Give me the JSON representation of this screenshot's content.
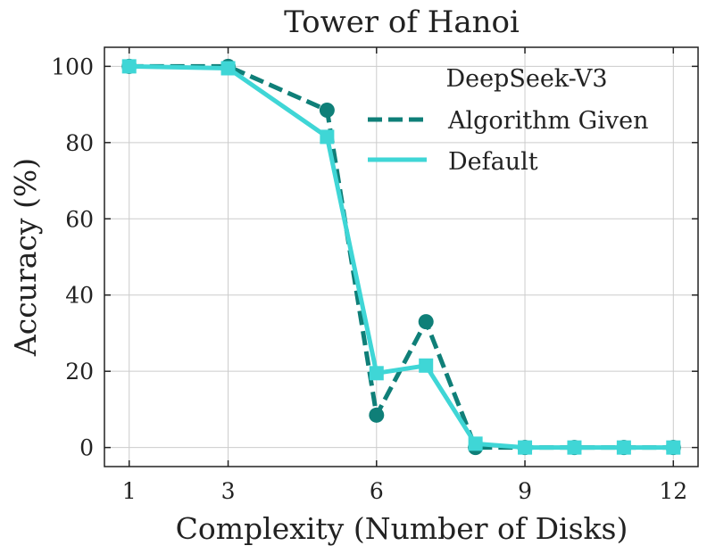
{
  "chart_data": {
    "type": "line",
    "title": "Tower of Hanoi",
    "xlabel": "Complexity (Number of Disks)",
    "ylabel": "Accuracy (%)",
    "xlim": [
      0.5,
      12.5
    ],
    "ylim": [
      -5,
      105
    ],
    "xticks": [
      1,
      3,
      6,
      9,
      12
    ],
    "yticks": [
      0,
      20,
      40,
      60,
      80,
      100
    ],
    "grid": true,
    "legend": {
      "title": "DeepSeek-V3",
      "placement": "top-right"
    },
    "series": [
      {
        "name": "Algorithm Given",
        "color": "#0f7f78",
        "linestyle": "dashed",
        "marker": "circle",
        "x": [
          1,
          3,
          5,
          6,
          7,
          8,
          9,
          10,
          11,
          12
        ],
        "y": [
          100,
          100,
          88.5,
          8.5,
          33,
          0,
          0,
          0,
          0,
          0
        ]
      },
      {
        "name": "Default",
        "color": "#3fd6d6",
        "linestyle": "solid",
        "marker": "square",
        "x": [
          1,
          3,
          5,
          6,
          7,
          8,
          9,
          10,
          11,
          12
        ],
        "y": [
          100,
          99.5,
          81.5,
          19.5,
          21.5,
          1,
          0,
          0,
          0,
          0
        ]
      }
    ]
  }
}
